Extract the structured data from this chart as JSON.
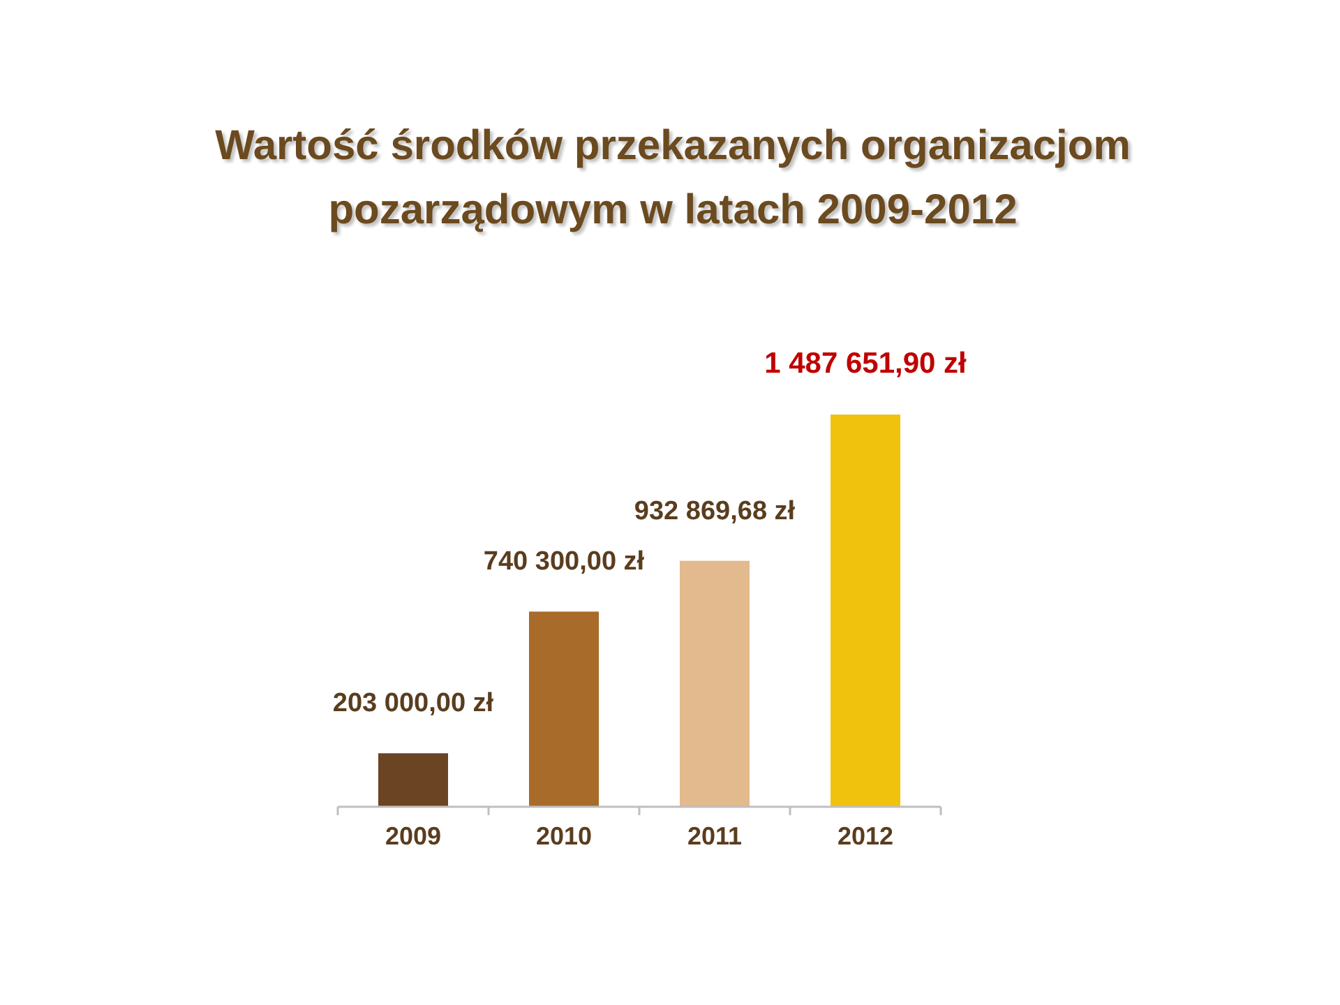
{
  "chart_data": {
    "type": "bar",
    "title": "Wartość środków przekazanych organizacjom pozarządowym w latach 2009-2012",
    "categories": [
      "2009",
      "2010",
      "2011",
      "2012"
    ],
    "values": [
      203000,
      740300,
      932869.68,
      1487651.9
    ],
    "colors": [
      "#6b4423",
      "#a86b2a",
      "#e3b98e",
      "#f0c20e"
    ],
    "value_labels": [
      "203 000,00 zł",
      "740 300,00 zł",
      "932 869,68 zł",
      "1 487 651,90 zł"
    ]
  }
}
